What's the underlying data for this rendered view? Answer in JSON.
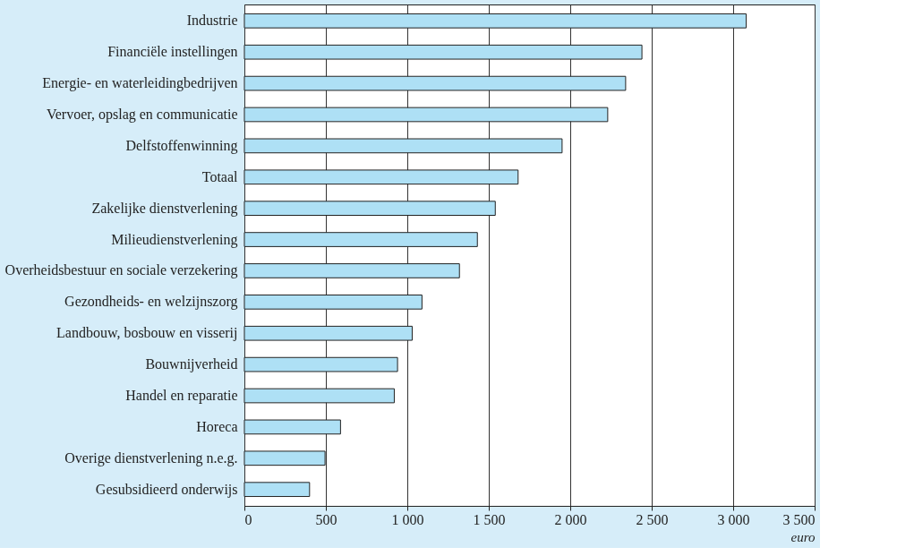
{
  "chart_data": {
    "type": "bar",
    "orientation": "horizontal",
    "xlabel": "euro",
    "categories": [
      "Industrie",
      "Financiële instellingen",
      "Energie- en waterleidingbedrijven",
      "Vervoer, opslag en communicatie",
      "Delfstoffenwinning",
      "Totaal",
      "Zakelijke dienstverlening",
      "Milieudienstverlening",
      "Overheidsbestuur en sociale verzekering",
      "Gezondheids- en welzijnszorg",
      "Landbouw, bosbouw en visserij",
      "Bouwnijverheid",
      "Handel en reparatie",
      "Horeca",
      "Overige dienstverlening n.e.g.",
      "Gesubsidieerd onderwijs"
    ],
    "values": [
      3080,
      2440,
      2340,
      2230,
      1950,
      1680,
      1540,
      1430,
      1320,
      1090,
      1030,
      940,
      920,
      590,
      495,
      400
    ],
    "color": "#aee0f5",
    "xlim": [
      0,
      3500
    ],
    "xticks": [
      0,
      500,
      {
        "value": 1000,
        "label": "1 000"
      },
      {
        "value": 1500,
        "label": "1 500"
      },
      {
        "value": 2000,
        "label": "2 000"
      },
      {
        "value": 2500,
        "label": "2 500"
      },
      {
        "value": 3000,
        "label": "3 000"
      },
      {
        "value": 3500,
        "label": "3 500"
      }
    ],
    "grid": "x"
  }
}
